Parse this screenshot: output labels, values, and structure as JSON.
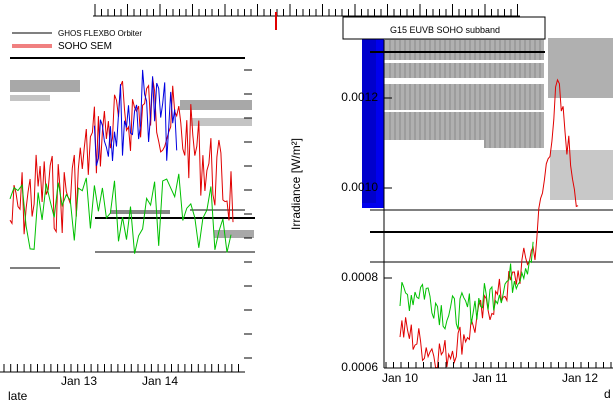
{
  "chart_data": [
    {
      "type": "line",
      "panel": "left",
      "title": "",
      "xlabel": "late",
      "ylabel": "",
      "x_ticks": [
        "Jan 13",
        "Jan 14"
      ],
      "legend": {
        "placement": "top-left",
        "entries": [
          "GHOS FLEXBO Orbiter",
          "SOHO SEM"
        ]
      },
      "series": [
        {
          "name": "SOHO SEM",
          "color": "#e00000",
          "x": [
            "Jan 12 18:00",
            "Jan 13 00:00",
            "Jan 13 06:00",
            "Jan 13 12:00",
            "Jan 13 18:00",
            "Jan 14 00:00",
            "Jan 14 06:00",
            "Jan 14 12:00",
            "Jan 14 18:00"
          ],
          "values": [
            0.7,
            0.55,
            0.6,
            0.35,
            0.25,
            0.2,
            0.3,
            0.45,
            0.6
          ]
        },
        {
          "name": "",
          "color": "#00c000",
          "x": [
            "Jan 12 18:00",
            "Jan 13 06:00",
            "Jan 13 18:00",
            "Jan 14 06:00",
            "Jan 14 18:00"
          ],
          "values": [
            0.72,
            0.68,
            0.7,
            0.66,
            0.7
          ]
        },
        {
          "name": "",
          "color": "#0000e0",
          "x": [
            "Jan 13 12:00",
            "Jan 13 18:00",
            "Jan 14 00:00",
            "Jan 14 06:00"
          ],
          "values": [
            0.3,
            0.25,
            0.18,
            0.35
          ]
        }
      ]
    },
    {
      "type": "line",
      "panel": "right",
      "title": "",
      "xlabel": "d",
      "ylabel": "Irradiance [W/m²]",
      "ylim": [
        0.0006,
        0.00135
      ],
      "y_ticks": [
        "0.0006",
        "0.0008",
        "0.0010",
        "0.0012"
      ],
      "x_ticks": [
        "Jan 10",
        "Jan 11",
        "Jan 12"
      ],
      "legend": {
        "placement": "top-right",
        "entries": [
          "G15 EUVB SOHO subband"
        ]
      },
      "series": [
        {
          "name": "",
          "color": "#e00000",
          "x": [
            "Jan 10 00:00",
            "Jan 10 06:00",
            "Jan 10 12:00",
            "Jan 10 18:00",
            "Jan 11 00:00",
            "Jan 11 06:00",
            "Jan 11 12:00",
            "Jan 11 18:00",
            "Jan 12 00:00"
          ],
          "values": [
            0.00069,
            0.00065,
            0.00063,
            0.00068,
            0.00074,
            0.00079,
            0.00087,
            0.00122,
            0.00095
          ]
        },
        {
          "name": "",
          "color": "#00c000",
          "x": [
            "Jan 10 00:00",
            "Jan 10 06:00",
            "Jan 10 12:00",
            "Jan 10 18:00",
            "Jan 11 00:00",
            "Jan 11 06:00",
            "Jan 11 12:00"
          ],
          "values": [
            0.00075,
            0.00078,
            0.00072,
            0.00073,
            0.00076,
            0.0008,
            0.00086
          ]
        }
      ]
    }
  ]
}
